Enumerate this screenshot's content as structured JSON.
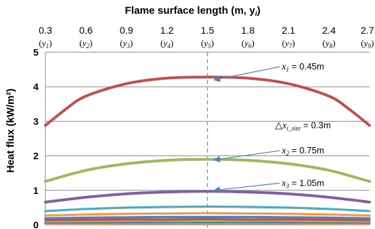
{
  "chart_data": {
    "type": "line",
    "title": "",
    "xlabel": "Flame surface length (m, y",
    "xlabel_sub": "i",
    "xlabel_close": ")",
    "ylabel": "Heat flux (kW/m²)",
    "xlim": [
      0.3,
      2.7
    ],
    "ylim": [
      0,
      5
    ],
    "x_axis_position": "top",
    "grid": "horizontal",
    "x_ticks": [
      {
        "value": 0.3,
        "label": "0.3",
        "sub_label": "(y1)"
      },
      {
        "value": 0.6,
        "label": "0.6",
        "sub_label": "(y2)"
      },
      {
        "value": 0.9,
        "label": "0.9",
        "sub_label": "(y3)"
      },
      {
        "value": 1.2,
        "label": "1.2",
        "sub_label": "(y4)"
      },
      {
        "value": 1.5,
        "label": "1.5",
        "sub_label": "(y5)"
      },
      {
        "value": 1.8,
        "label": "1.8",
        "sub_label": "(y6)"
      },
      {
        "value": 2.1,
        "label": "2.1",
        "sub_label": "(y7)"
      },
      {
        "value": 2.4,
        "label": "2.4",
        "sub_label": "(y8)"
      },
      {
        "value": 2.7,
        "label": "2.7",
        "sub_label": "(y9)"
      }
    ],
    "y_ticks": [
      0,
      1,
      2,
      3,
      4,
      5
    ],
    "reference_line": {
      "x": 1.5,
      "style": "dashed",
      "color": "#6f94d4"
    },
    "series": [
      {
        "color": "#c0504d",
        "x": [
          0.3,
          0.45,
          0.6,
          0.9,
          1.2,
          1.5,
          1.8,
          2.1,
          2.4,
          2.55,
          2.7
        ],
        "y": [
          2.88,
          3.35,
          3.73,
          4.09,
          4.25,
          4.28,
          4.25,
          4.09,
          3.73,
          3.35,
          2.88
        ]
      },
      {
        "color": "#9bbb59",
        "x": [
          0.3,
          0.6,
          0.9,
          1.2,
          1.5,
          1.8,
          2.1,
          2.4,
          2.7
        ],
        "y": [
          1.26,
          1.58,
          1.77,
          1.87,
          1.9,
          1.87,
          1.77,
          1.58,
          1.26
        ]
      },
      {
        "color": "#7f5fa6",
        "x": [
          0.3,
          0.6,
          0.9,
          1.2,
          1.5,
          1.8,
          2.1,
          2.4,
          2.7
        ],
        "y": [
          0.66,
          0.8,
          0.9,
          0.95,
          0.97,
          0.95,
          0.9,
          0.8,
          0.66
        ]
      },
      {
        "color": "#4aacc6",
        "x": [
          0.3,
          0.6,
          0.9,
          1.2,
          1.5,
          1.8,
          2.1,
          2.4,
          2.7
        ],
        "y": [
          0.4,
          0.46,
          0.5,
          0.52,
          0.53,
          0.52,
          0.5,
          0.46,
          0.4
        ]
      },
      {
        "color": "#f79646",
        "x": [
          0.3,
          0.6,
          0.9,
          1.2,
          1.5,
          1.8,
          2.1,
          2.4,
          2.7
        ],
        "y": [
          0.27,
          0.3,
          0.32,
          0.33,
          0.34,
          0.33,
          0.32,
          0.3,
          0.27
        ]
      },
      {
        "color": "#4f81bd",
        "x": [
          0.3,
          0.6,
          0.9,
          1.2,
          1.5,
          1.8,
          2.1,
          2.4,
          2.7
        ],
        "y": [
          0.19,
          0.21,
          0.22,
          0.23,
          0.23,
          0.23,
          0.22,
          0.21,
          0.19
        ]
      },
      {
        "color": "#c0504d",
        "x": [
          0.3,
          0.6,
          0.9,
          1.2,
          1.5,
          1.8,
          2.1,
          2.4,
          2.7
        ],
        "y": [
          0.14,
          0.15,
          0.16,
          0.16,
          0.17,
          0.16,
          0.16,
          0.15,
          0.14
        ]
      },
      {
        "color": "#9bbb59",
        "x": [
          0.3,
          0.6,
          0.9,
          1.2,
          1.5,
          1.8,
          2.1,
          2.4,
          2.7
        ],
        "y": [
          0.1,
          0.11,
          0.12,
          0.12,
          0.12,
          0.12,
          0.12,
          0.11,
          0.1
        ]
      },
      {
        "color": "#8064a2",
        "x": [
          0.3,
          0.6,
          0.9,
          1.2,
          1.5,
          1.8,
          2.1,
          2.4,
          2.7
        ],
        "y": [
          0.07,
          0.08,
          0.08,
          0.09,
          0.09,
          0.09,
          0.08,
          0.08,
          0.07
        ]
      },
      {
        "color": "#4bacc6",
        "x": [
          0.3,
          0.6,
          0.9,
          1.2,
          1.5,
          1.8,
          2.1,
          2.4,
          2.7
        ],
        "y": [
          0.05,
          0.05,
          0.06,
          0.06,
          0.06,
          0.06,
          0.06,
          0.05,
          0.05
        ]
      },
      {
        "color": "#f79646",
        "x": [
          0.3,
          0.6,
          0.9,
          1.2,
          1.5,
          1.8,
          2.1,
          2.4,
          2.7
        ],
        "y": [
          0.03,
          0.03,
          0.04,
          0.04,
          0.04,
          0.04,
          0.04,
          0.03,
          0.03
        ]
      }
    ],
    "annotations": [
      {
        "text": "x1 = 0.45m",
        "var": "x",
        "sub": "1",
        "value": " = 0.45m",
        "point": [
          1.55,
          4.2
        ],
        "text_at": [
          2.05,
          4.5
        ],
        "arrow": true
      },
      {
        "text": "△xi_size = 0.3m",
        "var": "△x",
        "sub": "i_size",
        "value": " = 0.3m",
        "point": null,
        "text_at": [
          2.0,
          2.8
        ],
        "arrow": false
      },
      {
        "text": "x2 = 0.75m",
        "var": "x",
        "sub": "2",
        "value": " = 0.75m",
        "point": [
          1.55,
          1.88
        ],
        "text_at": [
          2.05,
          2.07
        ],
        "arrow": true
      },
      {
        "text": "x3 = 1.05m",
        "var": "x",
        "sub": "3",
        "value": " = 1.05m",
        "point": [
          1.55,
          1.0
        ],
        "text_at": [
          2.05,
          1.13
        ],
        "arrow": true
      }
    ]
  }
}
